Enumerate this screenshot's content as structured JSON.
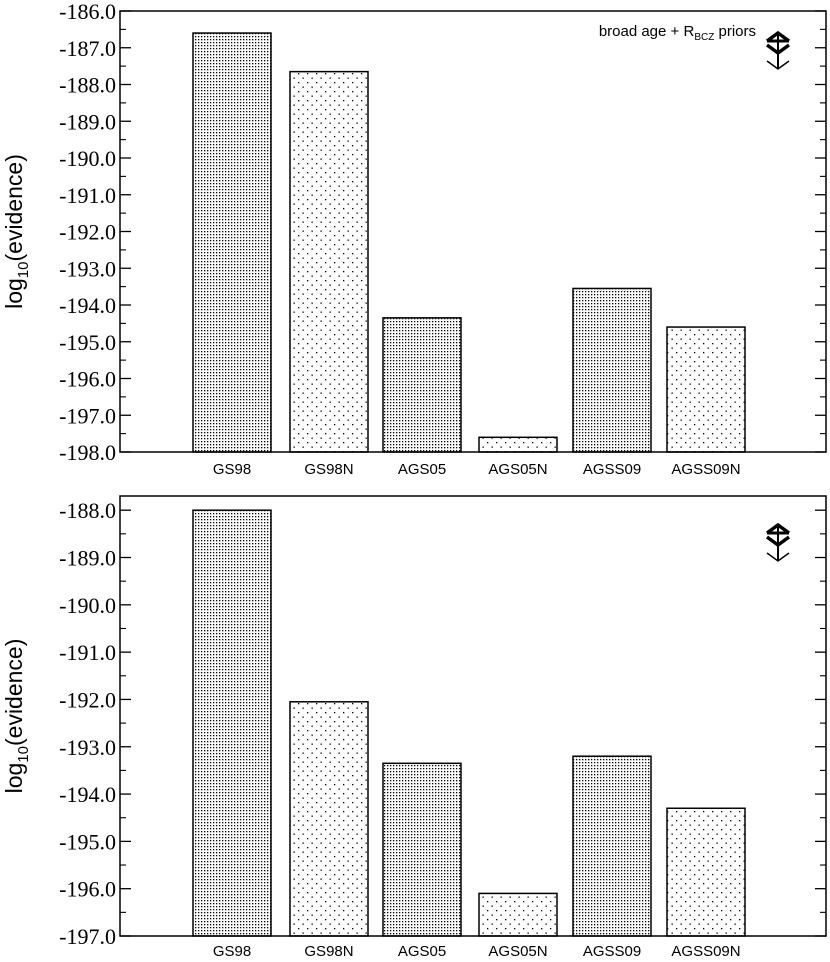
{
  "chart_data": [
    {
      "type": "bar",
      "title": "",
      "annotation": "broad age + R",
      "annotation_sub": "BCZ",
      "annotation_tail": " priors",
      "ylabel_main": "log",
      "ylabel_sub": "10",
      "ylabel_tail": "(evidence)",
      "categories": [
        "GS98",
        "GS98N",
        "AGS05",
        "AGS05N",
        "AGSS09",
        "AGSS09N"
      ],
      "values": [
        -186.6,
        -187.65,
        -194.35,
        -197.6,
        -193.55,
        -194.6
      ],
      "patterns": [
        "dense",
        "sparse",
        "dense",
        "sparse",
        "dense",
        "sparse"
      ],
      "ylim": [
        -198.0,
        -186.0
      ],
      "yticks": [
        "-186.0",
        "-187.0",
        "-188.0",
        "-189.0",
        "-190.0",
        "-191.0",
        "-192.0",
        "-193.0",
        "-194.0",
        "-195.0",
        "-196.0",
        "-197.0",
        "-198.0"
      ],
      "ytick_values": [
        -186,
        -187,
        -188,
        -189,
        -190,
        -191,
        -192,
        -193,
        -194,
        -195,
        -196,
        -197,
        -198
      ],
      "grid": false,
      "marker": "sun-symbol-icon"
    },
    {
      "type": "bar",
      "title": "",
      "ylabel_main": "log",
      "ylabel_sub": "10",
      "ylabel_tail": "(evidence)",
      "categories": [
        "GS98",
        "GS98N",
        "AGS05",
        "AGS05N",
        "AGSS09",
        "AGSS09N"
      ],
      "values": [
        -188.0,
        -192.05,
        -193.35,
        -196.1,
        -193.2,
        -194.3
      ],
      "patterns": [
        "dense",
        "sparse",
        "dense",
        "sparse",
        "dense",
        "sparse"
      ],
      "ylim": [
        -197.0,
        -187.7
      ],
      "yticks": [
        "-188.0",
        "-189.0",
        "-190.0",
        "-191.0",
        "-192.0",
        "-193.0",
        "-194.0",
        "-195.0",
        "-196.0",
        "-197.0"
      ],
      "ytick_values": [
        -188,
        -189,
        -190,
        -191,
        -192,
        -193,
        -194,
        -195,
        -196,
        -197
      ],
      "grid": false,
      "marker": "sun-symbol-icon"
    }
  ]
}
